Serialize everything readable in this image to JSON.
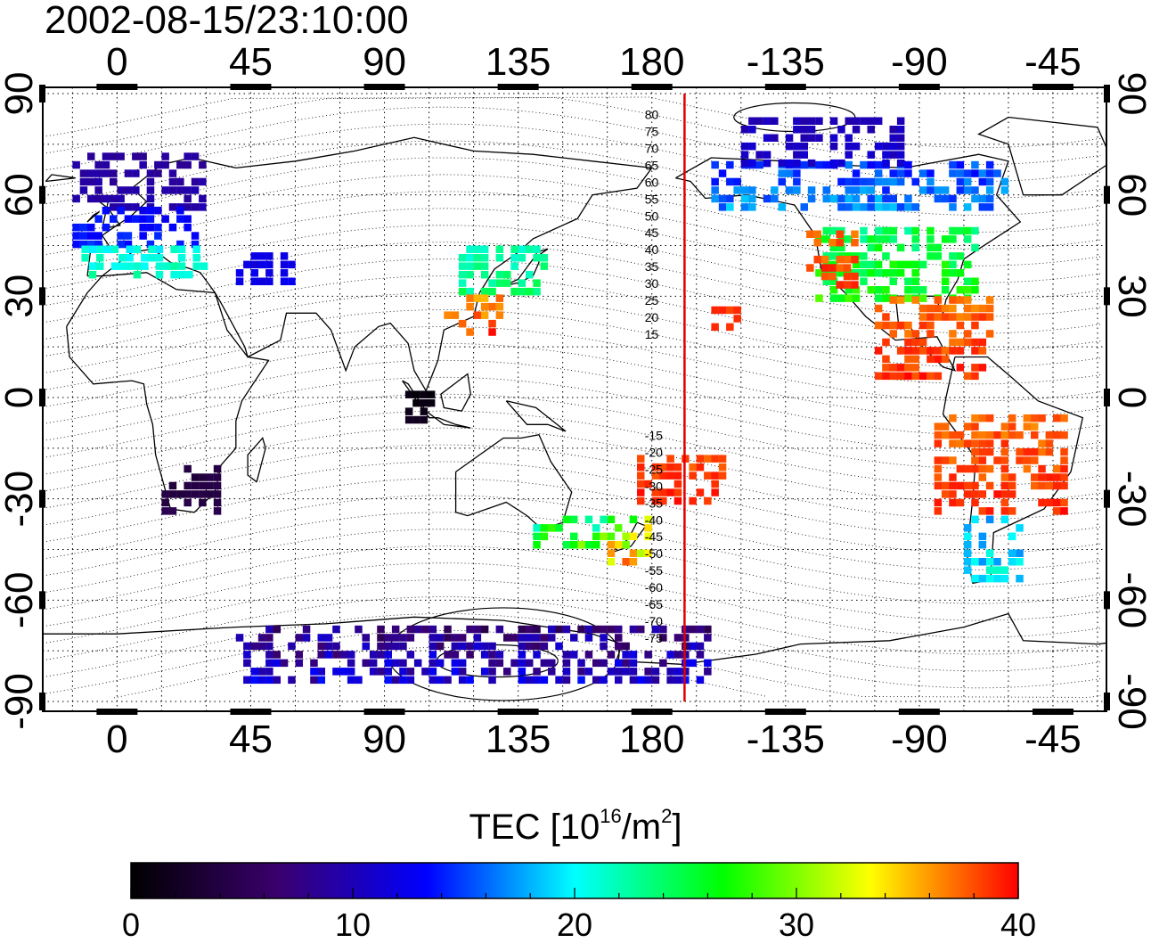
{
  "timestamp": "2002-08-15/23:10:00",
  "map": {
    "projection": "equirectangular",
    "center_longitude": 180,
    "lon_min": -25,
    "lon_max": 333,
    "lat_min": -90,
    "lat_max": 90,
    "lon_ticks": [
      {
        "lon": 0,
        "label": "0"
      },
      {
        "lon": 45,
        "label": "45"
      },
      {
        "lon": 90,
        "label": "90"
      },
      {
        "lon": 135,
        "label": "135"
      },
      {
        "lon": 180,
        "label": "180"
      },
      {
        "lon": 225,
        "label": "-135"
      },
      {
        "lon": 270,
        "label": "-90"
      },
      {
        "lon": 315,
        "label": "-45"
      }
    ],
    "lat_ticks": [
      {
        "lat": 90,
        "label": "90"
      },
      {
        "lat": 60,
        "label": "60"
      },
      {
        "lat": 30,
        "label": "30"
      },
      {
        "lat": 0,
        "label": "0"
      },
      {
        "lat": -30,
        "label": "-30"
      },
      {
        "lat": -60,
        "label": "-60"
      },
      {
        "lat": -90,
        "label": "-90"
      }
    ],
    "grid_dotted": true,
    "terminator_longitude": 191,
    "terminator_color": "#e00000",
    "magnetic_latitude_labels": [
      "80",
      "75",
      "70",
      "65",
      "60",
      "55",
      "50",
      "45",
      "40",
      "35",
      "30",
      "25",
      "20",
      "15",
      "-15",
      "-20",
      "-25",
      "-30",
      "-35",
      "-40",
      "-45",
      "-50",
      "-55",
      "-60",
      "-65",
      "-70",
      "-75"
    ]
  },
  "colorbar": {
    "title_prefix": "TEC  [10",
    "title_exp1": "16",
    "title_mid": "/m",
    "title_exp2": "2",
    "title_suffix": "]",
    "min": 0,
    "max": 40,
    "tick_labels": [
      "0",
      "10",
      "20",
      "30",
      "40"
    ],
    "colormap": [
      "#000000",
      "#3a006e",
      "#0000ff",
      "#00ffff",
      "#00ff00",
      "#ffff00",
      "#ff0000"
    ]
  },
  "tec_regions": [
    {
      "name": "europe-north",
      "lon0": -15,
      "lon1": 30,
      "lat0": 55,
      "lat1": 72,
      "tec0": 8,
      "tec1": 10
    },
    {
      "name": "europe-mid",
      "lon0": -15,
      "lon1": 28,
      "lat0": 44,
      "lat1": 55,
      "tec0": 12,
      "tec1": 15
    },
    {
      "name": "europe-south",
      "lon0": -12,
      "lon1": 30,
      "lat0": 35,
      "lat1": 44,
      "tec0": 19,
      "tec1": 23
    },
    {
      "name": "siberia-west",
      "lon0": 40,
      "lon1": 60,
      "lat0": 33,
      "lat1": 42,
      "tec0": 11,
      "tec1": 13
    },
    {
      "name": "east-asia",
      "lon0": 115,
      "lon1": 145,
      "lat0": 30,
      "lat1": 45,
      "tec0": 20,
      "tec1": 25
    },
    {
      "name": "china-south",
      "lon0": 110,
      "lon1": 130,
      "lat0": 18,
      "lat1": 30,
      "tec0": 34,
      "tec1": 40
    },
    {
      "name": "indonesia",
      "lon0": 97,
      "lon1": 107,
      "lat0": -8,
      "lat1": 2,
      "tec0": 0,
      "tec1": 2
    },
    {
      "name": "north-america",
      "lon0": 235,
      "lon1": 290,
      "lat0": 28,
      "lat1": 50,
      "tec0": 22,
      "tec1": 29
    },
    {
      "name": "western-us",
      "lon0": 232,
      "lon1": 248,
      "lat0": 32,
      "lat1": 48,
      "tec0": 36,
      "tec1": 40
    },
    {
      "name": "central-america",
      "lon0": 255,
      "lon1": 295,
      "lat0": 5,
      "lat1": 28,
      "tec0": 36,
      "tec1": 40
    },
    {
      "name": "canada",
      "lon0": 200,
      "lon1": 300,
      "lat0": 55,
      "lat1": 70,
      "tec0": 12,
      "tec1": 19
    },
    {
      "name": "alaska-north",
      "lon0": 210,
      "lon1": 265,
      "lat0": 68,
      "lat1": 83,
      "tec0": 9,
      "tec1": 12
    },
    {
      "name": "south-america",
      "lon0": 275,
      "lon1": 318,
      "lat0": -35,
      "lat1": -5,
      "tec0": 36,
      "tec1": 40
    },
    {
      "name": "patagonia",
      "lon0": 285,
      "lon1": 305,
      "lat0": -55,
      "lat1": -35,
      "tec0": 15,
      "tec1": 22
    },
    {
      "name": "new-zealand",
      "lon0": 165,
      "lon1": 180,
      "lat0": -50,
      "lat1": -35,
      "tec0": 25,
      "tec1": 38
    },
    {
      "name": "pacific-south",
      "lon0": 175,
      "lon1": 205,
      "lat0": -32,
      "lat1": -18,
      "tec0": 37,
      "tec1": 40
    },
    {
      "name": "australia-se",
      "lon0": 140,
      "lon1": 165,
      "lat0": -45,
      "lat1": -35,
      "tec0": 18,
      "tec1": 32
    },
    {
      "name": "southern-africa",
      "lon0": 15,
      "lon1": 35,
      "lat0": -35,
      "lat1": -20,
      "tec0": 3,
      "tec1": 5
    },
    {
      "name": "antarctica",
      "lon0": 40,
      "lon1": 200,
      "lat0": -85,
      "lat1": -68,
      "tec0": 4,
      "tec1": 14
    },
    {
      "name": "hawaii",
      "lon0": 200,
      "lon1": 208,
      "lat0": 17,
      "lat1": 25,
      "tec0": 38,
      "tec1": 40
    }
  ]
}
